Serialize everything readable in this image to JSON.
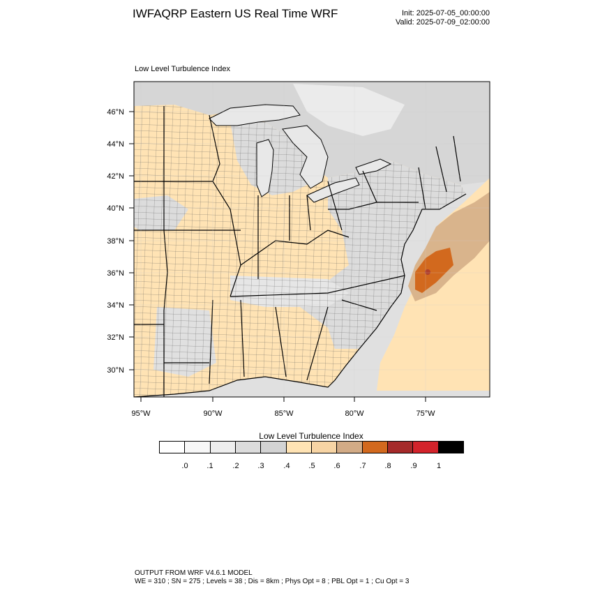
{
  "header": {
    "title": "IWFAQRP Eastern US Real Time WRF",
    "init": "Init: 2025-07-05_00:00:00",
    "valid": "Valid: 2025-07-09_02:00:00"
  },
  "map": {
    "subtitle": "Low Level Turbulence Index",
    "lat_labels": [
      "46°N",
      "44°N",
      "42°N",
      "40°N",
      "38°N",
      "36°N",
      "34°N",
      "32°N",
      "30°N"
    ],
    "lon_labels": [
      "95°W",
      "90°W",
      "85°W",
      "80°W",
      "75°W"
    ],
    "colors": {
      "land_base": "#ffe3b4",
      "land_gray": "#dcdcdc",
      "ocean": "#e0e0e0",
      "lakes": "#e8e8e8",
      "peak_dark": "#b0402c",
      "peak_orange": "#d2691e",
      "plume_tan": "#d9b48c",
      "plume_light": "#ffe3b4"
    }
  },
  "colorbar": {
    "title": "Low Level Turbulence Index",
    "colors": [
      "#ffffff",
      "#f7f7f7",
      "#eeeeee",
      "#dcdcdc",
      "#d3d3d3",
      "#ffe3b4",
      "#f7d4a4",
      "#d2ab86",
      "#d2691e",
      "#a52a2a",
      "#d3232b",
      "#000000"
    ],
    "labels": [
      ".0",
      ".1",
      ".2",
      ".3",
      ".4",
      ".5",
      ".6",
      ".7",
      ".8",
      ".9",
      "1"
    ]
  },
  "footer": {
    "line1": "OUTPUT FROM WRF V4.6.1 MODEL",
    "line2": "WE = 310 ; SN = 275 ; Levels = 38 ; Dis = 8km ; Phys Opt = 8 ; PBL Opt = 1 ; Cu Opt = 3"
  }
}
